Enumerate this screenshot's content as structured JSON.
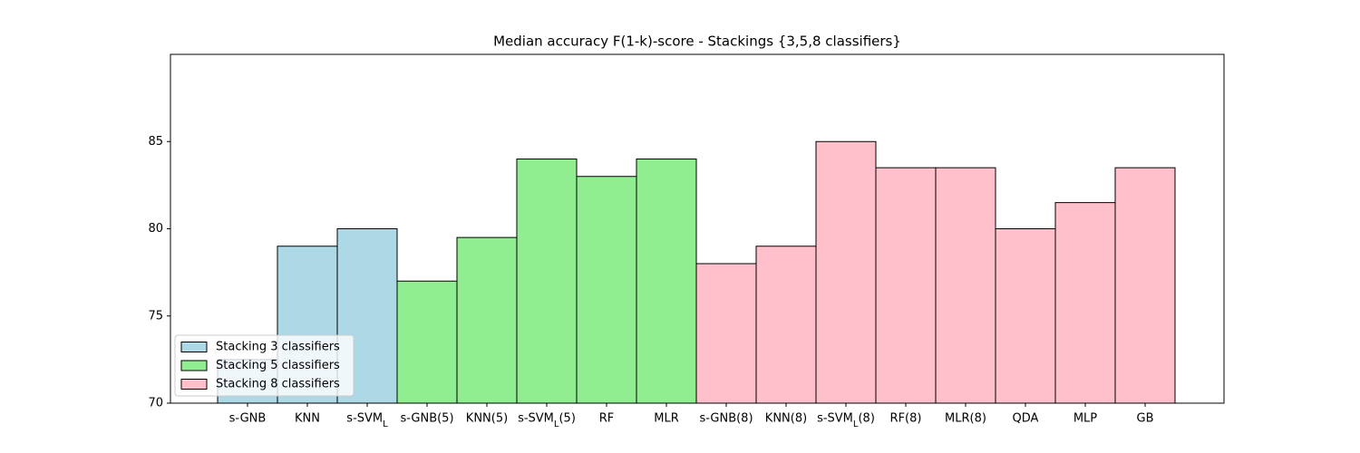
{
  "chart_data": {
    "type": "bar",
    "title": "Median accuracy F(1-k)-score - Stackings {3,5,8 classifiers}",
    "categories": [
      "s-GNB",
      "KNN",
      "s-SVM_L",
      "s-GNB(5)",
      "KNN(5)",
      "s-SVM_L(5)",
      "RF",
      "MLR",
      "s-GNB(8)",
      "KNN(8)",
      "s-SVM_L(8)",
      "RF(8)",
      "MLR(8)",
      "QDA",
      "MLP",
      "GB"
    ],
    "series": [
      {
        "name": "Stacking 3 classifiers",
        "color": "#add8e6",
        "values": [
          72.5,
          79,
          80,
          null,
          null,
          null,
          null,
          null,
          null,
          null,
          null,
          null,
          null,
          null,
          null,
          null
        ]
      },
      {
        "name": "Stacking 5 classifiers",
        "color": "#90ee90",
        "values": [
          null,
          null,
          null,
          77,
          79.5,
          84,
          83,
          84,
          null,
          null,
          null,
          null,
          null,
          null,
          null,
          null
        ]
      },
      {
        "name": "Stacking 8 classifiers",
        "color": "#ffc0cb",
        "values": [
          null,
          null,
          null,
          null,
          null,
          null,
          null,
          null,
          78,
          79,
          85,
          83.5,
          83.5,
          80,
          81.5,
          83.5
        ]
      }
    ],
    "ylim": [
      70,
      90
    ],
    "yticks": [
      70,
      75,
      80,
      85
    ],
    "legend": "lower left"
  }
}
